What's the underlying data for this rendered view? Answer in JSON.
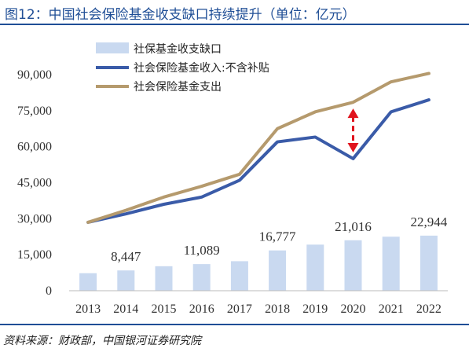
{
  "figure": {
    "title": "图12：中国社会保险基金收支缺口持续提升（单位：亿元）",
    "source": "资料来源：财政部，中国银河证券研究院"
  },
  "colors": {
    "bar": "#c9d9f0",
    "income": "#3a5ba8",
    "expenditure": "#b59a6d",
    "gap_arrow": "#e0141e",
    "rule": "#1f4e96"
  },
  "chart_data": {
    "type": "bar+line",
    "categories": [
      "2013",
      "2014",
      "2015",
      "2016",
      "2017",
      "2018",
      "2019",
      "2020",
      "2021",
      "2022"
    ],
    "ylim": [
      0,
      90000
    ],
    "yticks": [
      0,
      15000,
      30000,
      45000,
      60000,
      75000,
      90000
    ],
    "ytick_labels": [
      "0",
      "15,000",
      "30,000",
      "45,000",
      "60,000",
      "75,000",
      "90,000"
    ],
    "legend_position": "top-center",
    "grid": false,
    "series": [
      {
        "name": "社保基金收支缺口",
        "kind": "bar",
        "color": "#c9d9f0",
        "values": [
          7300,
          8447,
          10200,
          11089,
          12300,
          16777,
          19200,
          21016,
          22500,
          22944
        ]
      },
      {
        "name": "社会保险基金收入:不含补贴",
        "kind": "line",
        "color": "#3a5ba8",
        "values": [
          28500,
          32000,
          36000,
          39000,
          46000,
          62000,
          64000,
          55000,
          74500,
          79500
        ]
      },
      {
        "name": "社会保险基金支出",
        "kind": "line",
        "color": "#b59a6d",
        "values": [
          28500,
          33500,
          39000,
          43500,
          48500,
          67500,
          74500,
          78500,
          87000,
          90500
        ]
      }
    ],
    "data_labels": [
      {
        "index": 1,
        "text": "8,447"
      },
      {
        "index": 3,
        "text": "11,089"
      },
      {
        "index": 5,
        "text": "16,777"
      },
      {
        "index": 7,
        "text": "21,016"
      },
      {
        "index": 9,
        "text": "22,944"
      }
    ],
    "annotation": {
      "type": "double-arrow",
      "category_index": 7,
      "from_series": 1,
      "to_series": 2
    }
  }
}
